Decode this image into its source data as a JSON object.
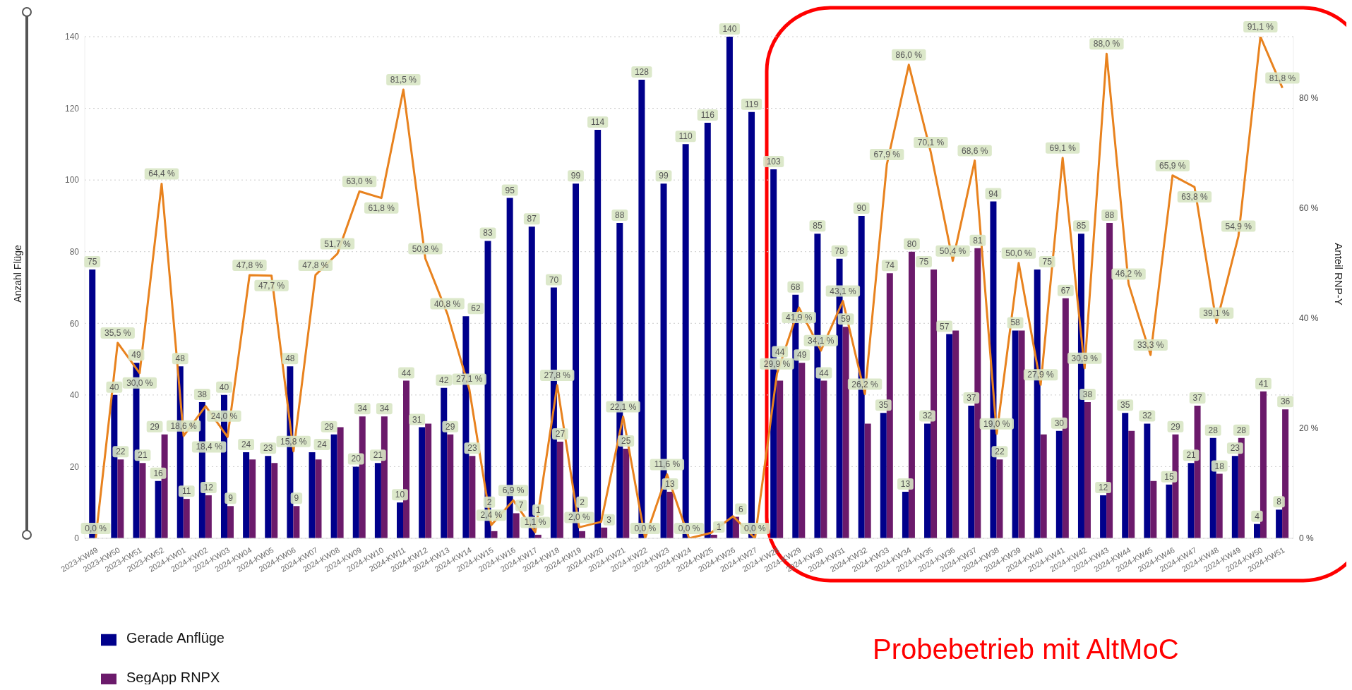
{
  "chart_data": {
    "type": "bar",
    "ylabel": "Anzahl Flüge",
    "y2label": "Anteil RNP-Y",
    "categories": [
      "2023-KW49",
      "2023-KW50",
      "2023-KW51",
      "2023-KW52",
      "2024-KW01",
      "2024-KW02",
      "2024-KW03",
      "2024-KW04",
      "2024-KW05",
      "2024-KW06",
      "2024-KW07",
      "2024-KW08",
      "2024-KW09",
      "2024-KW10",
      "2024-KW11",
      "2024-KW12",
      "2024-KW13",
      "2024-KW14",
      "2024-KW15",
      "2024-KW16",
      "2024-KW17",
      "2024-KW18",
      "2024-KW19",
      "2024-KW20",
      "2024-KW21",
      "2024-KW22",
      "2024-KW23",
      "2024-KW24",
      "2024-KW25",
      "2024-KW26",
      "2024-KW27",
      "2024-KW28",
      "2024-KW29",
      "2024-KW30",
      "2024-KW31",
      "2024-KW32",
      "2024-KW33",
      "2024-KW34",
      "2024-KW35",
      "2024-KW36",
      "2024-KW37",
      "2024-KW38",
      "2024-KW39",
      "2024-KW40",
      "2024-KW41",
      "2024-KW42",
      "2024-KW43",
      "2024-KW44",
      "2024-KW45",
      "2024-KW46",
      "2024-KW47",
      "2024-KW48",
      "2024-KW49",
      "2024-KW50",
      "2024-KW51"
    ],
    "series": [
      {
        "name": "Gerade Anflüge",
        "color": "#00008b",
        "values": [
          75,
          40,
          49,
          16,
          48,
          38,
          40,
          24,
          23,
          48,
          24,
          29,
          20,
          21,
          10,
          31,
          42,
          62,
          83,
          95,
          87,
          70,
          99,
          114,
          88,
          128,
          99,
          110,
          116,
          140,
          119,
          103,
          68,
          85,
          78,
          90,
          35,
          13,
          32,
          57,
          37,
          94,
          58,
          75,
          30,
          85,
          12,
          35,
          32,
          15,
          21,
          28,
          23,
          4,
          8
        ],
        "value_labels": [
          "75",
          "40",
          "49",
          "16",
          "48",
          "38",
          "40",
          "24",
          "23",
          "48",
          "24",
          "29",
          "20",
          "21",
          "10",
          "31",
          "42",
          "62",
          "83",
          "95",
          "87",
          "70",
          "99",
          "114",
          "88",
          "128",
          "99",
          "110",
          "116",
          "140",
          "119",
          "103",
          "68",
          "85",
          "78",
          "90",
          "35",
          "13",
          "32",
          "57",
          "37",
          "94",
          "58",
          "75",
          "30",
          "85",
          "12",
          "35",
          "32",
          "15",
          "21",
          "28",
          "23",
          "4",
          "8"
        ]
      },
      {
        "name": "SegApp RNPX",
        "color": "#6b1a6b",
        "values": [
          0,
          22,
          21,
          29,
          11,
          12,
          9,
          22,
          21,
          9,
          22,
          31,
          34,
          34,
          44,
          32,
          29,
          23,
          2,
          7,
          1,
          27,
          2,
          3,
          25,
          0,
          13,
          0,
          1,
          6,
          0,
          44,
          49,
          44,
          59,
          32,
          74,
          80,
          75,
          58,
          81,
          22,
          58,
          29,
          67,
          38,
          88,
          30,
          16,
          29,
          37,
          18,
          28,
          41,
          36
        ],
        "value_labels": [
          null,
          "22",
          "21",
          "29",
          "11",
          "12",
          "9",
          null,
          null,
          "9",
          null,
          null,
          "34",
          "34",
          "44",
          null,
          "29",
          "23",
          "2",
          "7",
          "1",
          "27",
          "2",
          "3",
          "25",
          null,
          "13",
          null,
          "1",
          "6",
          null,
          "44",
          "49",
          "44",
          "59",
          null,
          "74",
          "80",
          "75",
          null,
          "81",
          "22",
          null,
          null,
          "67",
          "38",
          "88",
          null,
          null,
          "29",
          "37",
          "18",
          "28",
          "41",
          "36"
        ]
      },
      {
        "type": "line",
        "axis": "y2",
        "color": "#e8821e",
        "values": [
          0,
          35.5,
          30.0,
          64.4,
          18.6,
          24.0,
          18.4,
          47.8,
          47.7,
          15.8,
          47.8,
          51.7,
          63.0,
          61.8,
          81.5,
          50.8,
          40.8,
          27.1,
          2.4,
          6.9,
          1.1,
          27.8,
          2.0,
          3,
          22.1,
          0,
          11.6,
          0,
          1,
          4,
          0,
          29.9,
          41.9,
          34.1,
          43.1,
          26.2,
          67.9,
          86.0,
          70.1,
          50.4,
          68.6,
          19.0,
          50.0,
          27.9,
          69.1,
          30.9,
          88.0,
          46.2,
          33.3,
          65.9,
          63.8,
          39.1,
          54.9,
          91.1,
          81.8
        ],
        "value_labels": [
          "0,0 %",
          "35,5 %",
          "30,0 %",
          "64,4 %",
          "18,6 %",
          "24,0 %",
          "18,4 %",
          "47,8 %",
          "47,7 %",
          "15,8 %",
          "47,8 %",
          "51,7 %",
          "63,0 %",
          "61,8 %",
          "81,5 %",
          "50,8 %",
          "40,8 %",
          "27,1 %",
          "2,4 %",
          "6,9 %",
          "1,1 %",
          "27,8 %",
          "2,0 %",
          null,
          "22,1 %",
          "0,0 %",
          "11,6 %",
          "0,0 %",
          null,
          null,
          "0,0 %",
          "29,9 %",
          "41,9 %",
          "34,1 %",
          "43,1 %",
          "26,2 %",
          "67,9 %",
          "86,0 %",
          "70,1 %",
          "50,4 %",
          "68,6 %",
          "19,0 %",
          "50,0 %",
          "27,9 %",
          "69,1 %",
          "30,9 %",
          "88,0 %",
          "46,2 %",
          "33,3 %",
          "65,9 %",
          "63,8 %",
          "39,1 %",
          "54,9 %",
          "91,1 %",
          "81,8 %"
        ]
      }
    ],
    "ylim": [
      0,
      140
    ],
    "yticks": [
      0,
      20,
      40,
      60,
      80,
      100,
      120,
      140
    ],
    "y2lim": [
      0,
      91.1
    ],
    "y2ticks": [
      {
        "value": 0,
        "label": "0 %"
      },
      {
        "value": 20,
        "label": "20 %"
      },
      {
        "value": 40,
        "label": "40 %"
      },
      {
        "value": 60,
        "label": "60 %"
      },
      {
        "value": 80,
        "label": "80 %"
      }
    ],
    "grid": "y",
    "legend": "bottom",
    "line_style": "solid",
    "annotations": [
      "Probebetrieb mit AltMoC"
    ]
  }
}
